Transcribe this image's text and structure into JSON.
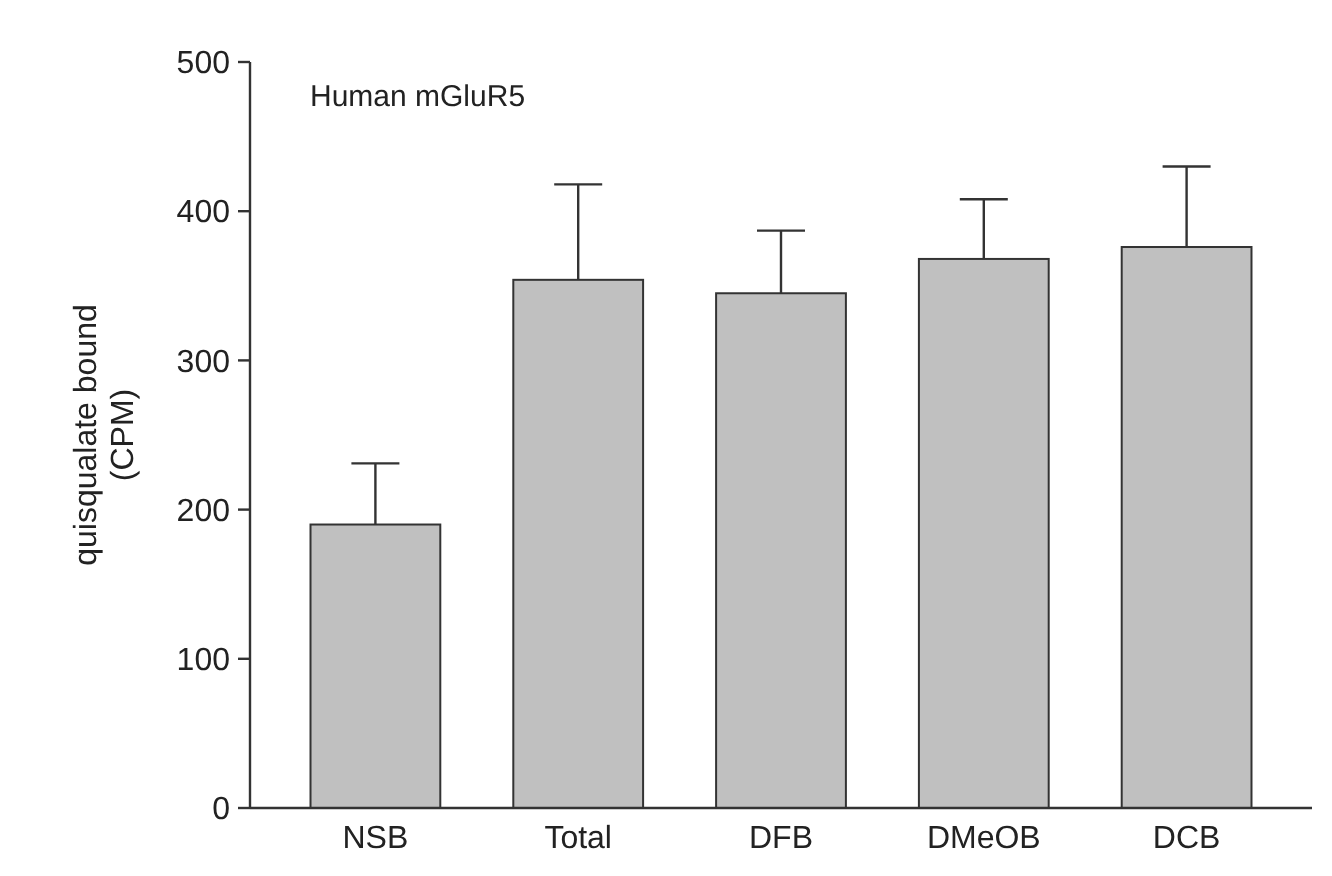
{
  "chart_data": {
    "type": "bar",
    "title": "Human mGluR5",
    "ylabel": "quisqualate bound\n(CPM)",
    "categories": [
      "NSB",
      "Total",
      "DFB",
      "DMeOB",
      "DCB"
    ],
    "values": [
      190,
      354,
      345,
      368,
      376
    ],
    "errors": [
      [
        190,
        231
      ],
      [
        354,
        418
      ],
      [
        345,
        387
      ],
      [
        368,
        408
      ],
      [
        376,
        430
      ]
    ],
    "color": "#c0c0c0",
    "ylim": [
      0,
      500
    ],
    "yticks": [
      0,
      100,
      200,
      300,
      400,
      500
    ],
    "grid": false
  }
}
